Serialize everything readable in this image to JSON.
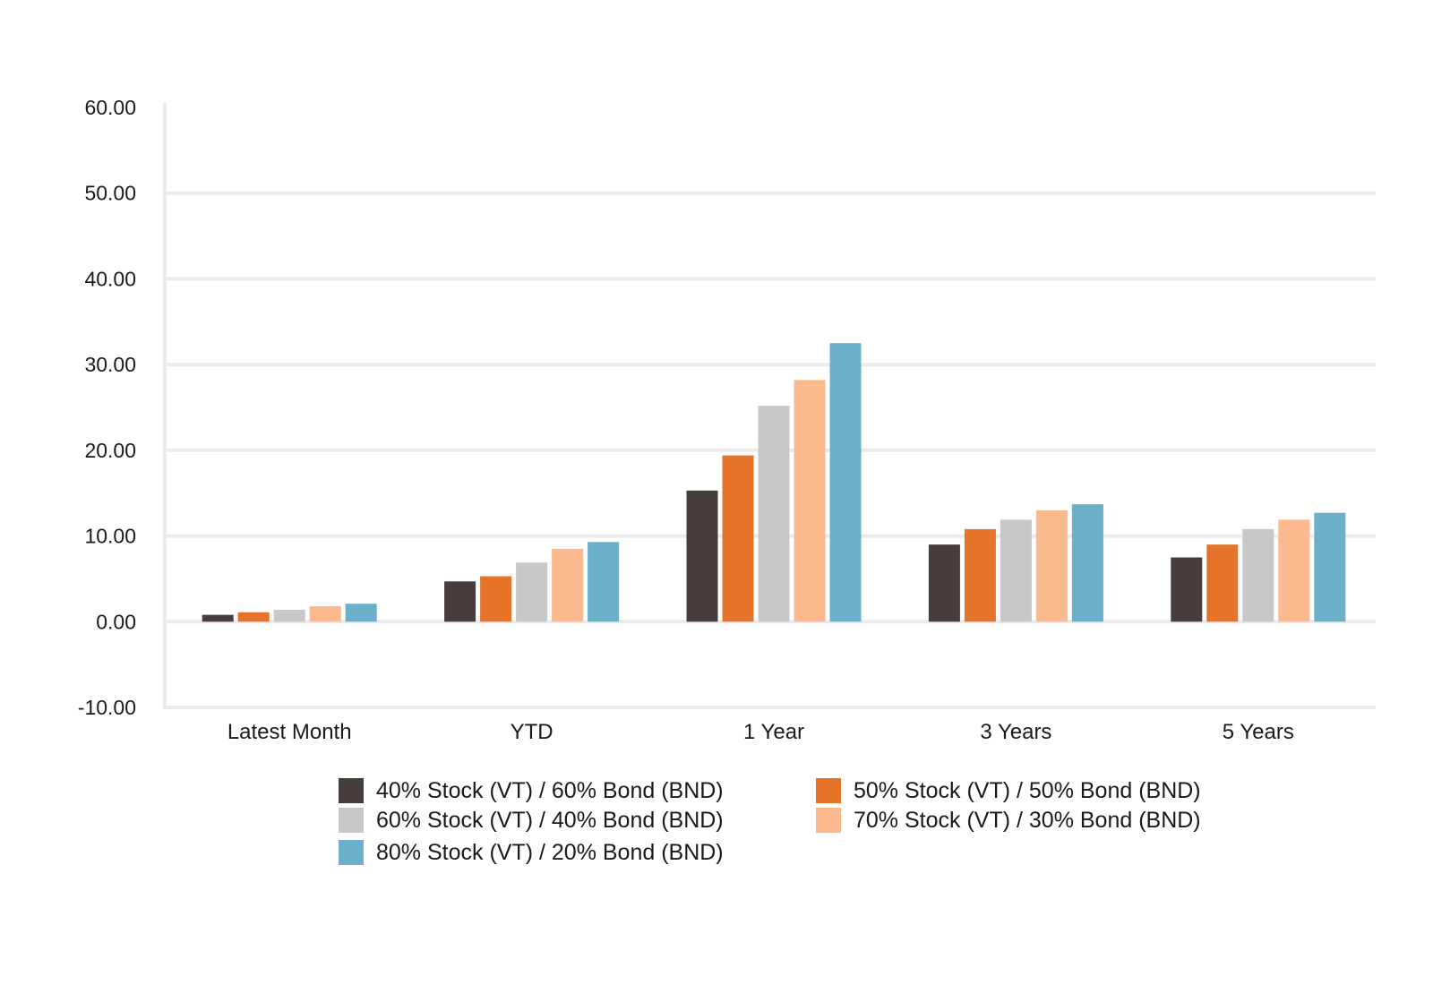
{
  "chart_data": {
    "type": "bar",
    "categories": [
      "Latest Month",
      "YTD",
      "1 Year",
      "3 Years",
      "5 Years"
    ],
    "series": [
      {
        "name": "40% Stock (VT) / 60% Bond (BND)",
        "color": "#463d3d",
        "values": [
          0.8,
          4.7,
          15.3,
          9.0,
          7.5
        ]
      },
      {
        "name": "50% Stock (VT) / 50% Bond (BND)",
        "color": "#e5742a",
        "values": [
          1.1,
          5.3,
          19.4,
          10.8,
          9.0
        ]
      },
      {
        "name": "60% Stock (VT) / 40% Bond (BND)",
        "color": "#c8c8ca",
        "values": [
          1.4,
          6.9,
          25.2,
          11.9,
          10.8
        ]
      },
      {
        "name": "70% Stock (VT) / 30% Bond (BND)",
        "color": "#fbb98d",
        "values": [
          1.8,
          8.5,
          28.2,
          13.0,
          11.9
        ]
      },
      {
        "name": "80% Stock (VT) / 20% Bond (BND)",
        "color": "#6bb0ca",
        "values": [
          2.1,
          9.3,
          32.5,
          13.7,
          12.7
        ]
      }
    ],
    "ylim": [
      -10,
      60
    ],
    "yticks": [
      "60.00",
      "50.00",
      "40.00",
      "30.00",
      "20.00",
      "10.00",
      "0.00",
      "-10.00"
    ],
    "ytick_values": [
      60,
      50,
      40,
      30,
      20,
      10,
      0,
      -10
    ],
    "grid": true,
    "legend_position": "bottom",
    "title": "",
    "xlabel": "",
    "ylabel": ""
  }
}
